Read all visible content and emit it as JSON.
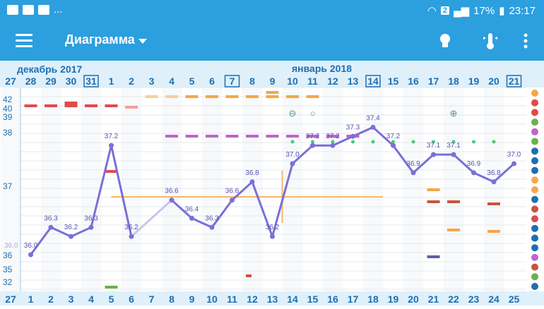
{
  "statusbar": {
    "notifications": "...",
    "sim_badge": "2",
    "battery": "17%",
    "time": "23:17"
  },
  "toolbar": {
    "title": "Диаграмма",
    "icons": [
      "menu-icon",
      "dropdown-icon",
      "lightbulb-icon",
      "thermometer-icon",
      "overflow-menu-icon"
    ]
  },
  "chart_data": {
    "type": "line",
    "month_labels": [
      "декабрь 2017",
      "январь 2018"
    ],
    "x_top": [
      "27",
      "28",
      "29",
      "30",
      "31",
      "1",
      "2",
      "3",
      "4",
      "5",
      "6",
      "7",
      "8",
      "9",
      "10",
      "11",
      "12",
      "13",
      "14",
      "15",
      "16",
      "17",
      "18",
      "19",
      "20",
      "21"
    ],
    "x_top_boxed": [
      "31",
      "7",
      "14",
      "21"
    ],
    "x_bottom": [
      "27",
      "1",
      "2",
      "3",
      "4",
      "5",
      "6",
      "7",
      "8",
      "9",
      "10",
      "11",
      "12",
      "13",
      "14",
      "15",
      "16",
      "17",
      "18",
      "19",
      "20",
      "21",
      "22",
      "23",
      "24",
      "25"
    ],
    "y_ticks": [
      "42",
      "40",
      "39",
      "38",
      "37",
      "36",
      "35",
      "32"
    ],
    "coverline": "36.0",
    "temperatures": [
      {
        "day": 1,
        "value": 36.0
      },
      {
        "day": 2,
        "value": 36.3
      },
      {
        "day": 3,
        "value": 36.2
      },
      {
        "day": 4,
        "value": 36.3
      },
      {
        "day": 5,
        "value": 37.2
      },
      {
        "day": 6,
        "value": 36.2
      },
      {
        "day": 8,
        "value": 36.6
      },
      {
        "day": 9,
        "value": 36.4
      },
      {
        "day": 10,
        "value": 36.3
      },
      {
        "day": 11,
        "value": 36.6
      },
      {
        "day": 12,
        "value": 36.8
      },
      {
        "day": 13,
        "value": 36.2
      },
      {
        "day": 14,
        "value": 37.0
      },
      {
        "day": 15,
        "value": 37.2
      },
      {
        "day": 16,
        "value": 37.2
      },
      {
        "day": 17,
        "value": 37.3
      },
      {
        "day": 18,
        "value": 37.4
      },
      {
        "day": 19,
        "value": 37.2
      },
      {
        "day": 20,
        "value": 36.9
      },
      {
        "day": 21,
        "value": 37.1
      },
      {
        "day": 22,
        "value": 37.1
      },
      {
        "day": 23,
        "value": 36.9
      },
      {
        "day": 24,
        "value": 36.8
      },
      {
        "day": 25,
        "value": 37.0
      }
    ],
    "series_color": "#7b6fd6",
    "symbols": [
      "⊖",
      "○",
      "⊕"
    ],
    "legend_icons": [
      "sun-icon",
      "drop-icon",
      "pill-icon",
      "spiral-icon",
      "heart-icon",
      "leaf-icon",
      "smile-icon",
      "stripes-icon",
      "document-icon",
      "flame-icon",
      "peach-icon",
      "face-icon",
      "person-icon",
      "flower-icon",
      "chat-icon",
      "hand-icon",
      "mood-icon",
      "monitor-icon",
      "gear-icon",
      "first-aid-icon",
      "cycle-icon"
    ]
  }
}
